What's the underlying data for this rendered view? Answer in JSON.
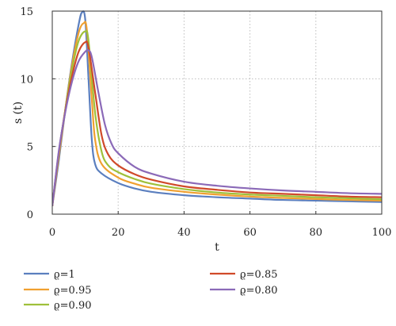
{
  "chart_data": {
    "type": "line",
    "xlabel": "t",
    "ylabel": "s (t)",
    "xlim": [
      0,
      100
    ],
    "ylim": [
      0,
      15
    ],
    "xticks": [
      0,
      20,
      40,
      60,
      80,
      100
    ],
    "yticks": [
      0,
      5,
      10,
      15
    ],
    "grid": true,
    "grid_style": "dotted",
    "legend_position": "bottom",
    "series": [
      {
        "name": "ϱ=1",
        "color": "#5b7fbf",
        "points": [
          [
            0,
            0.6
          ],
          [
            2,
            4.0
          ],
          [
            4,
            7.8
          ],
          [
            6,
            11.2
          ],
          [
            8,
            14.0
          ],
          [
            9,
            14.9
          ],
          [
            10,
            14.4
          ],
          [
            11,
            10.0
          ],
          [
            12,
            5.5
          ],
          [
            13,
            3.7
          ],
          [
            15,
            3.0
          ],
          [
            20,
            2.3
          ],
          [
            25,
            1.9
          ],
          [
            30,
            1.65
          ],
          [
            40,
            1.4
          ],
          [
            50,
            1.25
          ],
          [
            60,
            1.15
          ],
          [
            70,
            1.05
          ],
          [
            80,
            1.0
          ],
          [
            90,
            0.95
          ],
          [
            100,
            0.9
          ]
        ]
      },
      {
        "name": "ϱ=0.95",
        "color": "#f0a030",
        "points": [
          [
            0,
            0.6
          ],
          [
            2,
            4.3
          ],
          [
            4,
            7.8
          ],
          [
            6,
            11.0
          ],
          [
            8,
            13.4
          ],
          [
            9.5,
            14.1
          ],
          [
            10.5,
            13.6
          ],
          [
            12,
            8.5
          ],
          [
            13,
            5.5
          ],
          [
            15,
            3.7
          ],
          [
            20,
            2.7
          ],
          [
            25,
            2.25
          ],
          [
            30,
            1.95
          ],
          [
            40,
            1.65
          ],
          [
            50,
            1.45
          ],
          [
            60,
            1.3
          ],
          [
            70,
            1.2
          ],
          [
            80,
            1.12
          ],
          [
            90,
            1.05
          ],
          [
            100,
            1.0
          ]
        ]
      },
      {
        "name": "ϱ=0.90",
        "color": "#9fc03a",
        "points": [
          [
            0,
            0.6
          ],
          [
            2,
            4.5
          ],
          [
            4,
            7.8
          ],
          [
            6,
            10.7
          ],
          [
            8,
            12.8
          ],
          [
            10,
            13.5
          ],
          [
            11,
            12.8
          ],
          [
            13,
            7.5
          ],
          [
            15,
            4.6
          ],
          [
            17,
            3.6
          ],
          [
            20,
            3.1
          ],
          [
            25,
            2.6
          ],
          [
            30,
            2.25
          ],
          [
            40,
            1.85
          ],
          [
            50,
            1.6
          ],
          [
            60,
            1.45
          ],
          [
            70,
            1.35
          ],
          [
            80,
            1.25
          ],
          [
            90,
            1.18
          ],
          [
            100,
            1.1
          ]
        ]
      },
      {
        "name": "ϱ=0.85",
        "color": "#d04a2a",
        "points": [
          [
            0,
            0.6
          ],
          [
            2,
            4.6
          ],
          [
            4,
            7.7
          ],
          [
            6,
            10.2
          ],
          [
            8,
            12.0
          ],
          [
            10,
            12.7
          ],
          [
            11,
            12.3
          ],
          [
            13,
            9.0
          ],
          [
            15,
            5.8
          ],
          [
            17,
            4.4
          ],
          [
            20,
            3.6
          ],
          [
            25,
            2.95
          ],
          [
            30,
            2.55
          ],
          [
            40,
            2.05
          ],
          [
            50,
            1.8
          ],
          [
            60,
            1.6
          ],
          [
            70,
            1.5
          ],
          [
            80,
            1.4
          ],
          [
            90,
            1.3
          ],
          [
            100,
            1.25
          ]
        ]
      },
      {
        "name": "ϱ=0.80",
        "color": "#8b6ab8",
        "points": [
          [
            0,
            0.6
          ],
          [
            2,
            4.7
          ],
          [
            4,
            7.6
          ],
          [
            6,
            9.8
          ],
          [
            8,
            11.3
          ],
          [
            10,
            12.0
          ],
          [
            11,
            12.1
          ],
          [
            12,
            11.6
          ],
          [
            14,
            9.0
          ],
          [
            16,
            6.6
          ],
          [
            18,
            5.2
          ],
          [
            20,
            4.5
          ],
          [
            25,
            3.5
          ],
          [
            30,
            3.0
          ],
          [
            40,
            2.4
          ],
          [
            50,
            2.1
          ],
          [
            60,
            1.9
          ],
          [
            70,
            1.75
          ],
          [
            80,
            1.65
          ],
          [
            90,
            1.55
          ],
          [
            100,
            1.5
          ]
        ]
      }
    ]
  }
}
